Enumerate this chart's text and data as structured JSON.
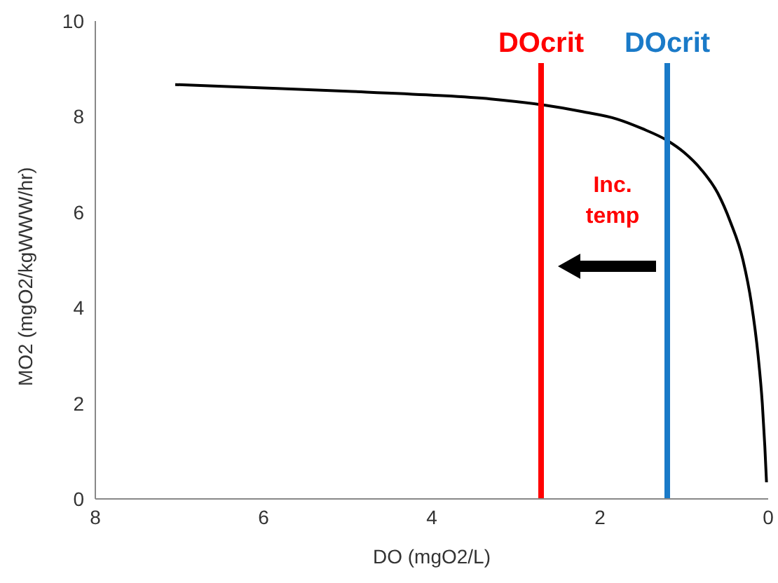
{
  "chart_data": {
    "type": "line",
    "xlabel": "DO (mgO2/L)",
    "ylabel": "MO2 (mgO2/kgWWW/hr)",
    "x": [
      7.05,
      6,
      5,
      4,
      3.3,
      2.7,
      2.2,
      1.8,
      1.5,
      1.2,
      1,
      0.8,
      0.6,
      0.45,
      0.3,
      0.2,
      0.12,
      0.07,
      0.04,
      0.02
    ],
    "series": [
      {
        "color": "#000000",
        "values": [
          8.67,
          8.6,
          8.53,
          8.45,
          8.37,
          8.25,
          8.1,
          7.95,
          7.75,
          7.5,
          7.25,
          6.9,
          6.4,
          5.8,
          5.0,
          4.1,
          3.0,
          2.0,
          1.1,
          0.35
        ]
      }
    ],
    "xlim": [
      8,
      0
    ],
    "xticks": [
      8,
      6,
      4,
      2,
      0
    ],
    "ylim": [
      0,
      10
    ],
    "yticks": [
      0,
      2,
      4,
      6,
      8,
      10
    ],
    "ref_lines": [
      {
        "axis": "x",
        "value": 2.7,
        "label": "DOcrit",
        "color": "#ff0000"
      },
      {
        "axis": "x",
        "value": 1.2,
        "label": "DOcrit",
        "color": "#1a7ac8"
      }
    ],
    "annotations": [
      "Inc. temp"
    ],
    "grid": false,
    "legend": false,
    "marker": "none",
    "line_style": "solid"
  }
}
